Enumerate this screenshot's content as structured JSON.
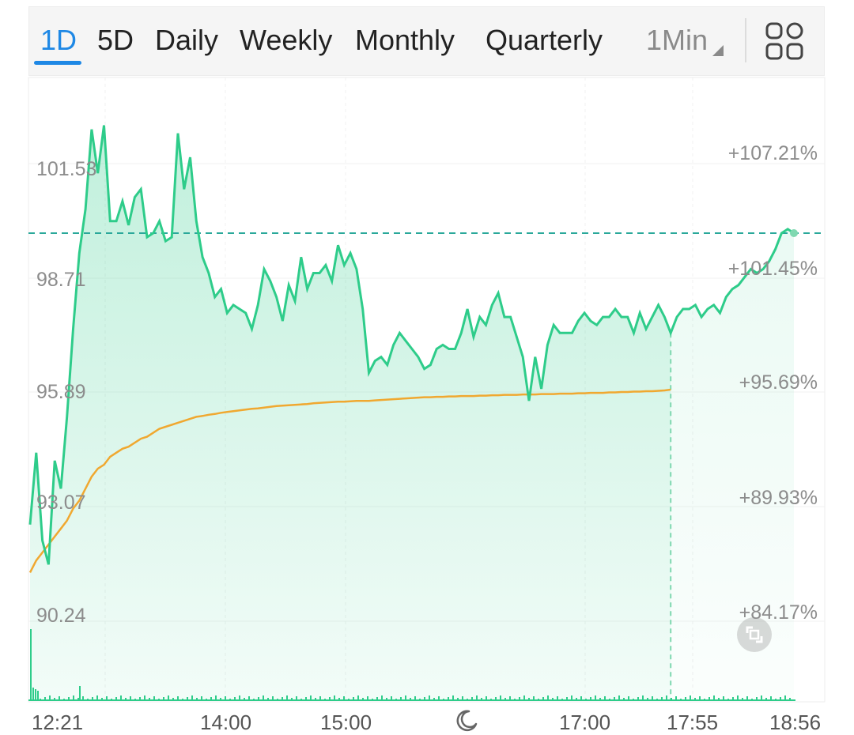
{
  "tabs": [
    {
      "label": "1D",
      "active": true
    },
    {
      "label": "5D"
    },
    {
      "label": "Daily"
    },
    {
      "label": "Weekly"
    },
    {
      "label": "Monthly"
    },
    {
      "label": "Quarterly"
    }
  ],
  "interval": {
    "label": "1Min"
  },
  "icons": {
    "layout": "grid-layout-icon",
    "session": "moon-icon",
    "expand": "expand-icon",
    "interval_caret": "caret-down-icon"
  },
  "colors": {
    "price_line": "#2ecc8a",
    "price_fill": "#2ecc8a",
    "avg_line": "#f0a830",
    "reference_line": "#2aa89a",
    "active_tab": "#1e88e5",
    "volume_up": "#2ecc8a",
    "volume_down": "#e05555"
  },
  "chart_data": {
    "type": "line",
    "x_labels": [
      "12:21",
      "14:00",
      "15:00",
      "",
      "17:00",
      "17:55",
      "18:56"
    ],
    "y_ticks_left": [
      "101.53",
      "98.71",
      "95.89",
      "93.07",
      "90.24"
    ],
    "y_ticks_right": [
      "+107.21%",
      "+101.45%",
      "+95.69%",
      "+89.93%",
      "+84.17%"
    ],
    "ylim": [
      88.0,
      103.6
    ],
    "reference_price": 99.7,
    "regular_session_end_index": 104,
    "series": [
      {
        "name": "",
        "role": "price",
        "values": [
          92.4,
          94.2,
          92.0,
          91.4,
          94.0,
          93.3,
          95.1,
          97.3,
          99.2,
          100.3,
          102.3,
          101.2,
          102.4,
          100.0,
          100.0,
          100.5,
          99.9,
          100.6,
          100.8,
          99.6,
          99.7,
          100.0,
          99.5,
          99.6,
          102.2,
          100.8,
          101.6,
          100.0,
          99.1,
          98.7,
          98.1,
          98.3,
          97.7,
          97.9,
          97.8,
          97.7,
          97.3,
          97.9,
          98.8,
          98.5,
          98.1,
          97.5,
          98.4,
          98.0,
          99.1,
          98.3,
          98.7,
          98.7,
          98.9,
          98.5,
          99.4,
          98.9,
          99.2,
          98.8,
          97.8,
          96.2,
          96.5,
          96.6,
          96.4,
          96.9,
          97.2,
          97.0,
          96.8,
          96.6,
          96.3,
          96.4,
          96.8,
          96.9,
          96.8,
          96.8,
          97.2,
          97.8,
          97.1,
          97.6,
          97.4,
          97.9,
          98.2,
          97.6,
          97.6,
          97.1,
          96.6,
          95.5,
          96.6,
          95.8,
          96.9,
          97.4,
          97.2,
          97.2,
          97.2,
          97.5,
          97.7,
          97.5,
          97.4,
          97.6,
          97.6,
          97.8,
          97.6,
          97.6,
          97.2,
          97.7,
          97.3,
          97.6,
          97.9,
          97.6,
          97.2,
          97.6,
          97.8,
          97.8,
          97.9,
          97.6,
          97.8,
          97.9,
          97.7,
          98.1,
          98.3,
          98.4,
          98.6,
          98.8,
          98.7,
          98.8,
          99.0,
          99.3,
          99.7,
          99.8,
          99.7
        ]
      },
      {
        "name": "",
        "role": "average",
        "values": [
          91.2,
          91.5,
          91.7,
          91.9,
          92.1,
          92.3,
          92.5,
          92.8,
          93.0,
          93.3,
          93.6,
          93.8,
          93.9,
          94.1,
          94.2,
          94.3,
          94.35,
          94.45,
          94.55,
          94.6,
          94.7,
          94.8,
          94.85,
          94.9,
          94.95,
          95.0,
          95.05,
          95.1,
          95.12,
          95.15,
          95.17,
          95.2,
          95.22,
          95.24,
          95.26,
          95.28,
          95.3,
          95.31,
          95.33,
          95.35,
          95.37,
          95.38,
          95.39,
          95.4,
          95.41,
          95.42,
          95.44,
          95.45,
          95.46,
          95.47,
          95.48,
          95.48,
          95.49,
          95.5,
          95.5,
          95.5,
          95.51,
          95.52,
          95.53,
          95.54,
          95.55,
          95.56,
          95.57,
          95.58,
          95.59,
          95.59,
          95.6,
          95.6,
          95.61,
          95.61,
          95.62,
          95.62,
          95.62,
          95.63,
          95.63,
          95.64,
          95.64,
          95.65,
          95.65,
          95.65,
          95.66,
          95.66,
          95.66,
          95.67,
          95.67,
          95.67,
          95.68,
          95.68,
          95.68,
          95.69,
          95.69,
          95.7,
          95.7,
          95.7,
          95.71,
          95.71,
          95.72,
          95.72,
          95.73,
          95.73,
          95.74,
          95.74,
          95.75,
          95.76,
          95.78
        ]
      }
    ],
    "grid": true,
    "legend": "none"
  }
}
